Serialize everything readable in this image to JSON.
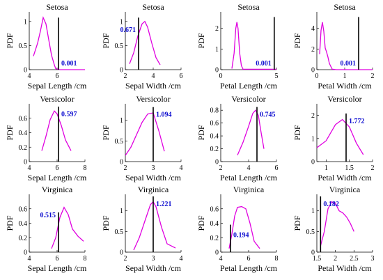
{
  "colors": {
    "curve": "#e000e0",
    "marker": "#000000",
    "value_label": "#1010d0"
  },
  "chart_data": [
    {
      "type": "line",
      "title": "Setosa",
      "xlabel": "Sepal Length /cm",
      "ylabel": "PDF",
      "xlim": [
        4,
        8
      ],
      "ylim": [
        0,
        1.2
      ],
      "xticks": [
        4,
        6
      ],
      "yticks": [
        0,
        0.5,
        1
      ],
      "x": [
        4.3,
        4.6,
        4.8,
        5.0,
        5.2,
        5.4,
        5.6,
        5.8,
        5.9,
        6.2,
        7.0,
        8.0
      ],
      "y": [
        0.28,
        0.55,
        0.8,
        1.08,
        0.95,
        0.62,
        0.3,
        0.1,
        0.02,
        0.0,
        0.0,
        0.0
      ],
      "marker_x": 6.1,
      "marker_top": 1.08,
      "value": "0.001"
    },
    {
      "type": "line",
      "title": "Setosa",
      "xlabel": "Sepal Width /cm",
      "ylabel": "PDF",
      "xlim": [
        2,
        6
      ],
      "ylim": [
        0,
        1.2
      ],
      "xticks": [
        2,
        4,
        6
      ],
      "yticks": [
        0,
        0.5,
        1
      ],
      "x": [
        2.3,
        2.6,
        2.9,
        3.2,
        3.4,
        3.6,
        3.9,
        4.2,
        4.5
      ],
      "y": [
        0.12,
        0.35,
        0.7,
        0.95,
        1.0,
        0.88,
        0.55,
        0.25,
        0.1
      ],
      "marker_x": 2.95,
      "marker_top": 1.08,
      "value": "0.671"
    },
    {
      "type": "line",
      "title": "Setosa",
      "xlabel": "Petal Length /cm",
      "ylabel": "PDF",
      "xlim": [
        0,
        5
      ],
      "ylim": [
        0,
        2.8
      ],
      "xticks": [
        0,
        5
      ],
      "yticks": [
        0,
        1,
        2
      ],
      "x": [
        1.0,
        1.2,
        1.35,
        1.45,
        1.55,
        1.7,
        1.85,
        2.0,
        5.0
      ],
      "y": [
        0.05,
        0.8,
        2.0,
        2.3,
        2.0,
        0.8,
        0.2,
        0.02,
        0.02
      ],
      "marker_x": 4.8,
      "marker_top": 2.55,
      "value": "0.001"
    },
    {
      "type": "line",
      "title": "Setosa",
      "xlabel": "Petal Width /cm",
      "ylabel": "PDF",
      "xlim": [
        0,
        2
      ],
      "ylim": [
        0,
        5.6
      ],
      "xticks": [
        0,
        1,
        2
      ],
      "yticks": [
        0,
        2,
        4
      ],
      "x": [
        0.1,
        0.15,
        0.2,
        0.25,
        0.3,
        0.35,
        0.4,
        0.45,
        0.55,
        0.7,
        2.0
      ],
      "y": [
        1.5,
        3.8,
        4.6,
        3.7,
        2.1,
        1.7,
        1.2,
        0.6,
        0.05,
        0.0,
        0.0
      ],
      "marker_x": 1.5,
      "marker_top": 5.1,
      "value": "0.001"
    },
    {
      "type": "line",
      "title": "Versicolor",
      "xlabel": "Sepal Length /cm",
      "ylabel": "PDF",
      "xlim": [
        4,
        8
      ],
      "ylim": [
        0,
        0.8
      ],
      "xticks": [
        4,
        6,
        8
      ],
      "yticks": [
        0,
        0.2,
        0.4,
        0.6
      ],
      "x": [
        4.9,
        5.2,
        5.5,
        5.8,
        6.0,
        6.3,
        6.6,
        7.0
      ],
      "y": [
        0.15,
        0.35,
        0.58,
        0.7,
        0.66,
        0.5,
        0.3,
        0.15
      ],
      "marker_x": 6.1,
      "marker_top": 0.76,
      "value": "0.597"
    },
    {
      "type": "line",
      "title": "Versicolor",
      "xlabel": "Sepal Width /cm",
      "ylabel": "PDF",
      "xlim": [
        2,
        4
      ],
      "ylim": [
        0,
        1.4
      ],
      "xticks": [
        2,
        3,
        4
      ],
      "yticks": [
        0,
        0.5,
        1
      ],
      "x": [
        2.0,
        2.2,
        2.4,
        2.6,
        2.8,
        3.0,
        3.2,
        3.4
      ],
      "y": [
        0.15,
        0.35,
        0.65,
        0.95,
        1.15,
        1.18,
        0.75,
        0.25
      ],
      "marker_x": 3.0,
      "marker_top": 1.32,
      "value": "1.094"
    },
    {
      "type": "line",
      "title": "Versicolor",
      "xlabel": "Petal Length /cm",
      "ylabel": "PDF",
      "xlim": [
        2,
        6
      ],
      "ylim": [
        0,
        0.9
      ],
      "xticks": [
        2,
        4,
        6
      ],
      "yticks": [
        0,
        0.2,
        0.4,
        0.6,
        0.8
      ],
      "x": [
        3.2,
        3.6,
        4.0,
        4.3,
        4.5,
        4.7,
        4.9,
        5.1
      ],
      "y": [
        0.1,
        0.3,
        0.55,
        0.75,
        0.8,
        0.72,
        0.45,
        0.2
      ],
      "marker_x": 4.6,
      "marker_top": 0.85,
      "value": "0.745"
    },
    {
      "type": "line",
      "title": "Versicolor",
      "xlabel": "Petal Width /cm",
      "ylabel": "PDF",
      "xlim": [
        0.8,
        2
      ],
      "ylim": [
        0,
        2.5
      ],
      "xticks": [
        1,
        1.5,
        2
      ],
      "yticks": [
        0,
        1,
        2
      ],
      "x": [
        0.8,
        1.0,
        1.2,
        1.35,
        1.5,
        1.65,
        1.8
      ],
      "y": [
        0.6,
        0.9,
        1.6,
        1.82,
        1.5,
        0.8,
        0.3
      ],
      "marker_x": 1.43,
      "marker_top": 2.08,
      "value": "1.772"
    },
    {
      "type": "line",
      "title": "Virginica",
      "xlabel": "Sepal Length /cm",
      "ylabel": "PDF",
      "xlim": [
        4,
        8
      ],
      "ylim": [
        0,
        0.8
      ],
      "xticks": [
        4,
        6,
        8
      ],
      "yticks": [
        0,
        0.2,
        0.4,
        0.6
      ],
      "x": [
        5.6,
        5.9,
        6.2,
        6.5,
        6.8,
        7.1,
        7.5,
        7.9
      ],
      "y": [
        0.05,
        0.2,
        0.48,
        0.62,
        0.52,
        0.32,
        0.22,
        0.15
      ],
      "marker_x": 6.1,
      "marker_top": 0.55,
      "value": "0.515"
    },
    {
      "type": "line",
      "title": "Virginica",
      "xlabel": "Sepal Width /cm",
      "ylabel": "PDF",
      "xlim": [
        2,
        4
      ],
      "ylim": [
        0,
        1.4
      ],
      "xticks": [
        2,
        3,
        4
      ],
      "yticks": [
        0,
        0.5,
        1
      ],
      "x": [
        2.3,
        2.5,
        2.7,
        2.9,
        3.0,
        3.1,
        3.3,
        3.5,
        3.8
      ],
      "y": [
        0.05,
        0.35,
        0.75,
        1.15,
        1.22,
        1.1,
        0.6,
        0.2,
        0.1
      ],
      "marker_x": 3.0,
      "marker_top": 1.35,
      "value": "1.221"
    },
    {
      "type": "line",
      "title": "Virginica",
      "xlabel": "Petal Length /cm",
      "ylabel": "PDF",
      "xlim": [
        4,
        8
      ],
      "ylim": [
        0,
        0.8
      ],
      "xticks": [
        4,
        6,
        8
      ],
      "yticks": [
        0,
        0.2,
        0.4,
        0.6
      ],
      "x": [
        4.6,
        4.8,
        5.0,
        5.2,
        5.5,
        5.8,
        6.1,
        6.4,
        6.8
      ],
      "y": [
        0.05,
        0.25,
        0.5,
        0.62,
        0.63,
        0.6,
        0.4,
        0.15,
        0.05
      ],
      "marker_x": 4.7,
      "marker_top": 0.38,
      "value": "0.194"
    },
    {
      "type": "line",
      "title": "Virginica",
      "xlabel": "Petal Width /cm",
      "ylabel": "PDF",
      "xlim": [
        1.5,
        3
      ],
      "ylim": [
        0,
        1.4
      ],
      "xticks": [
        1.5,
        2,
        2.5,
        3
      ],
      "yticks": [
        0,
        0.5,
        1
      ],
      "x": [
        1.6,
        1.7,
        1.8,
        1.9,
        2.0,
        2.1,
        2.2,
        2.3,
        2.4,
        2.5
      ],
      "y": [
        0.15,
        0.5,
        1.05,
        1.22,
        1.18,
        1.0,
        0.95,
        0.85,
        0.7,
        0.5
      ],
      "marker_x": 1.6,
      "marker_top": 1.35,
      "value": "0.182"
    }
  ]
}
